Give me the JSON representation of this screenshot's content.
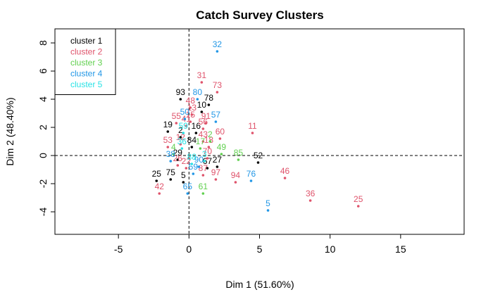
{
  "chart_data": {
    "type": "scatter",
    "title": "Catch Survey Clusters",
    "xlabel": "Dim 1 (51.60%)",
    "ylabel": "Dim 2 (48.40%)",
    "xlim": [
      -9.5,
      19.5
    ],
    "ylim": [
      -5.6,
      9.0
    ],
    "xticks": [
      -5,
      0,
      5,
      10,
      15
    ],
    "yticks": [
      -4,
      -2,
      0,
      2,
      4,
      6,
      8
    ],
    "reference_lines": {
      "x": 0,
      "y": 0,
      "style": "dashed"
    },
    "grid": false,
    "legend": {
      "placement": "top-left"
    },
    "series": [
      {
        "name": "cluster 1",
        "color": "#000000",
        "points": [
          {
            "label": "93",
            "x": -0.6,
            "y": 4.0
          },
          {
            "label": "78",
            "x": 1.4,
            "y": 3.6
          },
          {
            "label": "10",
            "x": 0.9,
            "y": 3.1
          },
          {
            "label": "19",
            "x": -1.5,
            "y": 1.7
          },
          {
            "label": "16",
            "x": 0.5,
            "y": 1.6
          },
          {
            "label": "2",
            "x": -0.6,
            "y": 1.3
          },
          {
            "label": "84",
            "x": 0.2,
            "y": 0.6
          },
          {
            "label": "52",
            "x": 4.9,
            "y": -0.5
          },
          {
            "label": "27",
            "x": 2.0,
            "y": -0.8
          },
          {
            "label": "67",
            "x": 1.3,
            "y": -0.9
          },
          {
            "label": "29",
            "x": -0.8,
            "y": -0.3
          },
          {
            "label": "75",
            "x": -1.3,
            "y": -1.7
          },
          {
            "label": "25",
            "x": -2.3,
            "y": -1.8
          },
          {
            "label": "5",
            "x": -0.4,
            "y": -1.9
          }
        ]
      },
      {
        "name": "cluster 2",
        "color": "#DF536B",
        "points": [
          {
            "label": "31",
            "x": 0.9,
            "y": 5.2
          },
          {
            "label": "73",
            "x": 2.0,
            "y": 4.5
          },
          {
            "label": "48",
            "x": 0.1,
            "y": 3.4
          },
          {
            "label": "13",
            "x": 0.2,
            "y": 2.9
          },
          {
            "label": "55",
            "x": -0.9,
            "y": 2.3
          },
          {
            "label": "15",
            "x": 0.1,
            "y": 2.4
          },
          {
            "label": "91",
            "x": 1.2,
            "y": 2.3
          },
          {
            "label": "60",
            "x": 2.2,
            "y": 1.2
          },
          {
            "label": "11",
            "x": 4.5,
            "y": 1.6
          },
          {
            "label": "56",
            "x": 1.0,
            "y": 1.9
          },
          {
            "label": "41",
            "x": -0.2,
            "y": 2.1
          },
          {
            "label": "43",
            "x": 1.0,
            "y": 1.0
          },
          {
            "label": "18",
            "x": 1.4,
            "y": 0.6
          },
          {
            "label": "70",
            "x": 1.3,
            "y": -0.2
          },
          {
            "label": "53",
            "x": -1.5,
            "y": 0.6
          },
          {
            "label": "12",
            "x": -0.6,
            "y": 0.8
          },
          {
            "label": "46",
            "x": 6.8,
            "y": -1.6
          },
          {
            "label": "36",
            "x": 8.6,
            "y": -3.2
          },
          {
            "label": "25",
            "x": 12.0,
            "y": -3.6
          },
          {
            "label": "94",
            "x": 3.3,
            "y": -1.9
          },
          {
            "label": "97",
            "x": 1.9,
            "y": -1.7
          },
          {
            "label": "87",
            "x": 1.0,
            "y": -1.4
          },
          {
            "label": "42",
            "x": -2.1,
            "y": -2.7
          },
          {
            "label": "22",
            "x": -0.2,
            "y": -0.9
          },
          {
            "label": "26",
            "x": -0.8,
            "y": -0.7
          }
        ]
      },
      {
        "name": "cluster 3",
        "color": "#61D04F",
        "points": [
          {
            "label": "2",
            "x": 1.5,
            "y": 1.0
          },
          {
            "label": "49",
            "x": 2.3,
            "y": 0.1
          },
          {
            "label": "85",
            "x": 3.5,
            "y": -0.3
          },
          {
            "label": "17",
            "x": 0.8,
            "y": 0.5
          },
          {
            "label": "61",
            "x": 1.0,
            "y": -2.7
          },
          {
            "label": "4",
            "x": -1.1,
            "y": 0.1
          }
        ]
      },
      {
        "name": "cluster 4",
        "color": "#2297E6",
        "points": [
          {
            "label": "32",
            "x": 2.0,
            "y": 7.4
          },
          {
            "label": "80",
            "x": 0.6,
            "y": 4.0
          },
          {
            "label": "50",
            "x": -0.3,
            "y": 2.6
          },
          {
            "label": "57",
            "x": 1.9,
            "y": 2.4
          },
          {
            "label": "76",
            "x": 4.4,
            "y": -1.8
          },
          {
            "label": "5",
            "x": 5.6,
            "y": -3.9
          },
          {
            "label": "65",
            "x": -0.1,
            "y": -2.7
          },
          {
            "label": "38",
            "x": -1.3,
            "y": -0.4
          },
          {
            "label": "90",
            "x": 0.7,
            "y": -0.8
          },
          {
            "label": "59",
            "x": 0.3,
            "y": -1.3
          }
        ]
      },
      {
        "name": "cluster 5",
        "color": "#28E2E5",
        "points": [
          {
            "label": "59",
            "x": -0.4,
            "y": 1.6
          },
          {
            "label": "36",
            "x": -0.5,
            "y": 0.5
          },
          {
            "label": "3",
            "x": 1.1,
            "y": -0.4
          },
          {
            "label": "88",
            "x": 0.2,
            "y": -0.6
          }
        ]
      }
    ]
  }
}
